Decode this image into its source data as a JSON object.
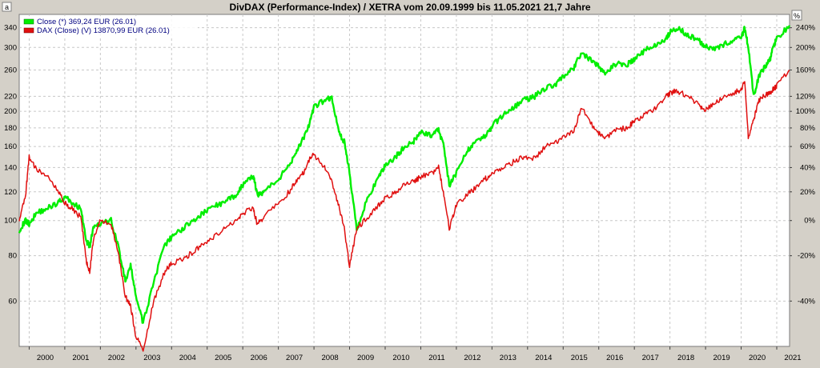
{
  "chart_data": {
    "type": "line",
    "title": "DivDAX (Performance-Index) / XETRA vom 20.09.1999 bis 11.05.2021 21,7 Jahre",
    "left_axis_marker": "a",
    "right_axis_marker": "%",
    "y_scale": "log",
    "ylim": [
      45,
      370
    ],
    "xlim": [
      1999.72,
      2021.36
    ],
    "grid": true,
    "legend_position": "top-left",
    "x_ticks": [
      {
        "label": "2000",
        "x": 2000.0
      },
      {
        "label": "2001",
        "x": 2001.0
      },
      {
        "label": "2002",
        "x": 2002.0
      },
      {
        "label": "2003",
        "x": 2003.0
      },
      {
        "label": "2004",
        "x": 2004.0
      },
      {
        "label": "2005",
        "x": 2005.0
      },
      {
        "label": "2006",
        "x": 2006.0
      },
      {
        "label": "2007",
        "x": 2007.0
      },
      {
        "label": "2008",
        "x": 2008.0
      },
      {
        "label": "2009",
        "x": 2009.0
      },
      {
        "label": "2010",
        "x": 2010.0
      },
      {
        "label": "2011",
        "x": 2011.0
      },
      {
        "label": "2012",
        "x": 2012.0
      },
      {
        "label": "2013",
        "x": 2013.0
      },
      {
        "label": "2014",
        "x": 2014.0
      },
      {
        "label": "2015",
        "x": 2015.0
      },
      {
        "label": "2016",
        "x": 2016.0
      },
      {
        "label": "2017",
        "x": 2017.0
      },
      {
        "label": "2018",
        "x": 2018.0
      },
      {
        "label": "2019",
        "x": 2019.0
      },
      {
        "label": "2020",
        "x": 2020.0
      },
      {
        "label": "2021",
        "x": 2021.0
      }
    ],
    "y_ticks_left": [
      {
        "label": "60",
        "v": 60
      },
      {
        "label": "80",
        "v": 80
      },
      {
        "label": "100",
        "v": 100
      },
      {
        "label": "120",
        "v": 120
      },
      {
        "label": "140",
        "v": 140
      },
      {
        "label": "160",
        "v": 160
      },
      {
        "label": "180",
        "v": 180
      },
      {
        "label": "200",
        "v": 200
      },
      {
        "label": "220",
        "v": 220
      },
      {
        "label": "260",
        "v": 260
      },
      {
        "label": "300",
        "v": 300
      },
      {
        "label": "340",
        "v": 340
      }
    ],
    "y_ticks_right": [
      {
        "label": "-40%",
        "v": 60
      },
      {
        "label": "-20%",
        "v": 80
      },
      {
        "label": "0%",
        "v": 100
      },
      {
        "label": "20%",
        "v": 120
      },
      {
        "label": "40%",
        "v": 140
      },
      {
        "label": "60%",
        "v": 160
      },
      {
        "label": "80%",
        "v": 180
      },
      {
        "label": "100%",
        "v": 200
      },
      {
        "label": "120%",
        "v": 220
      },
      {
        "label": "160%",
        "v": 260
      },
      {
        "label": "200%",
        "v": 300
      },
      {
        "label": "240%",
        "v": 340
      }
    ],
    "series": [
      {
        "name": "Close (*) 369,24 EUR (26.01)",
        "color": "#00ee00",
        "x": [
          1999.72,
          1999.9,
          2000.0,
          2000.2,
          2000.5,
          2000.8,
          2001.0,
          2001.2,
          2001.45,
          2001.6,
          2001.7,
          2001.8,
          2002.0,
          2002.3,
          2002.5,
          2002.7,
          2002.85,
          2003.0,
          2003.2,
          2003.5,
          2003.8,
          2004.0,
          2004.3,
          2004.6,
          2004.9,
          2005.2,
          2005.5,
          2005.8,
          2006.0,
          2006.3,
          2006.4,
          2006.6,
          2007.0,
          2007.3,
          2007.5,
          2007.7,
          2007.9,
          2008.0,
          2008.3,
          2008.5,
          2008.7,
          2008.85,
          2009.0,
          2009.2,
          2009.5,
          2009.8,
          2010.0,
          2010.3,
          2010.5,
          2010.8,
          2011.0,
          2011.3,
          2011.5,
          2011.65,
          2011.8,
          2012.0,
          2012.3,
          2012.5,
          2012.8,
          2013.0,
          2013.3,
          2013.6,
          2013.9,
          2014.2,
          2014.5,
          2014.8,
          2015.0,
          2015.3,
          2015.5,
          2015.8,
          2016.0,
          2016.2,
          2016.5,
          2016.8,
          2017.0,
          2017.3,
          2017.6,
          2017.9,
          2018.0,
          2018.2,
          2018.5,
          2018.8,
          2018.95,
          2019.2,
          2019.5,
          2019.8,
          2020.0,
          2020.1,
          2020.2,
          2020.35,
          2020.5,
          2020.7,
          2020.8,
          2020.9,
          2021.0,
          2021.36
        ],
        "values": [
          94,
          100,
          98,
          105,
          108,
          112,
          116,
          112,
          108,
          88,
          85,
          95,
          98,
          100,
          85,
          68,
          75,
          62,
          52,
          68,
          85,
          90,
          95,
          100,
          105,
          110,
          112,
          118,
          125,
          133,
          118,
          120,
          130,
          142,
          155,
          168,
          188,
          205,
          215,
          218,
          175,
          165,
          135,
          95,
          115,
          130,
          142,
          150,
          158,
          165,
          175,
          172,
          178,
          160,
          125,
          135,
          155,
          165,
          170,
          182,
          195,
          205,
          215,
          220,
          232,
          238,
          250,
          262,
          290,
          275,
          265,
          255,
          272,
          270,
          278,
          295,
          305,
          318,
          330,
          340,
          325,
          315,
          305,
          298,
          305,
          315,
          318,
          340,
          300,
          220,
          250,
          268,
          275,
          300,
          318,
          345
        ]
      },
      {
        "name": "DAX (Close) (V) 13870,99 EUR (26.01)",
        "color": "#e01010",
        "x": [
          1999.72,
          1999.9,
          2000.0,
          2000.2,
          2000.5,
          2000.8,
          2001.0,
          2001.2,
          2001.45,
          2001.6,
          2001.7,
          2001.8,
          2002.0,
          2002.3,
          2002.5,
          2002.7,
          2002.85,
          2003.0,
          2003.2,
          2003.5,
          2003.8,
          2004.0,
          2004.3,
          2004.6,
          2004.9,
          2005.2,
          2005.5,
          2005.8,
          2006.0,
          2006.3,
          2006.4,
          2006.6,
          2007.0,
          2007.3,
          2007.5,
          2007.7,
          2007.9,
          2008.0,
          2008.3,
          2008.5,
          2008.7,
          2008.85,
          2009.0,
          2009.2,
          2009.5,
          2009.8,
          2010.0,
          2010.3,
          2010.5,
          2010.8,
          2011.0,
          2011.3,
          2011.5,
          2011.65,
          2011.8,
          2012.0,
          2012.3,
          2012.5,
          2012.8,
          2013.0,
          2013.3,
          2013.6,
          2013.9,
          2014.2,
          2014.5,
          2014.8,
          2015.0,
          2015.3,
          2015.5,
          2015.8,
          2016.0,
          2016.2,
          2016.5,
          2016.8,
          2017.0,
          2017.3,
          2017.6,
          2017.9,
          2018.0,
          2018.2,
          2018.5,
          2018.8,
          2018.95,
          2019.2,
          2019.5,
          2019.8,
          2020.0,
          2020.1,
          2020.2,
          2020.35,
          2020.5,
          2020.7,
          2020.8,
          2020.9,
          2021.0,
          2021.36
        ],
        "values": [
          100,
          118,
          150,
          138,
          132,
          122,
          112,
          108,
          102,
          78,
          72,
          88,
          100,
          98,
          82,
          62,
          58,
          48,
          44,
          60,
          72,
          76,
          78,
          82,
          86,
          90,
          95,
          100,
          105,
          108,
          98,
          102,
          112,
          120,
          128,
          135,
          150,
          152,
          140,
          128,
          110,
          95,
          75,
          95,
          102,
          110,
          115,
          120,
          125,
          128,
          132,
          135,
          140,
          118,
          95,
          110,
          118,
          122,
          130,
          135,
          140,
          145,
          150,
          148,
          160,
          165,
          170,
          175,
          205,
          185,
          175,
          170,
          178,
          180,
          188,
          195,
          205,
          220,
          225,
          228,
          220,
          210,
          200,
          210,
          218,
          225,
          230,
          240,
          170,
          190,
          215,
          222,
          225,
          230,
          235,
          260
        ]
      }
    ]
  }
}
